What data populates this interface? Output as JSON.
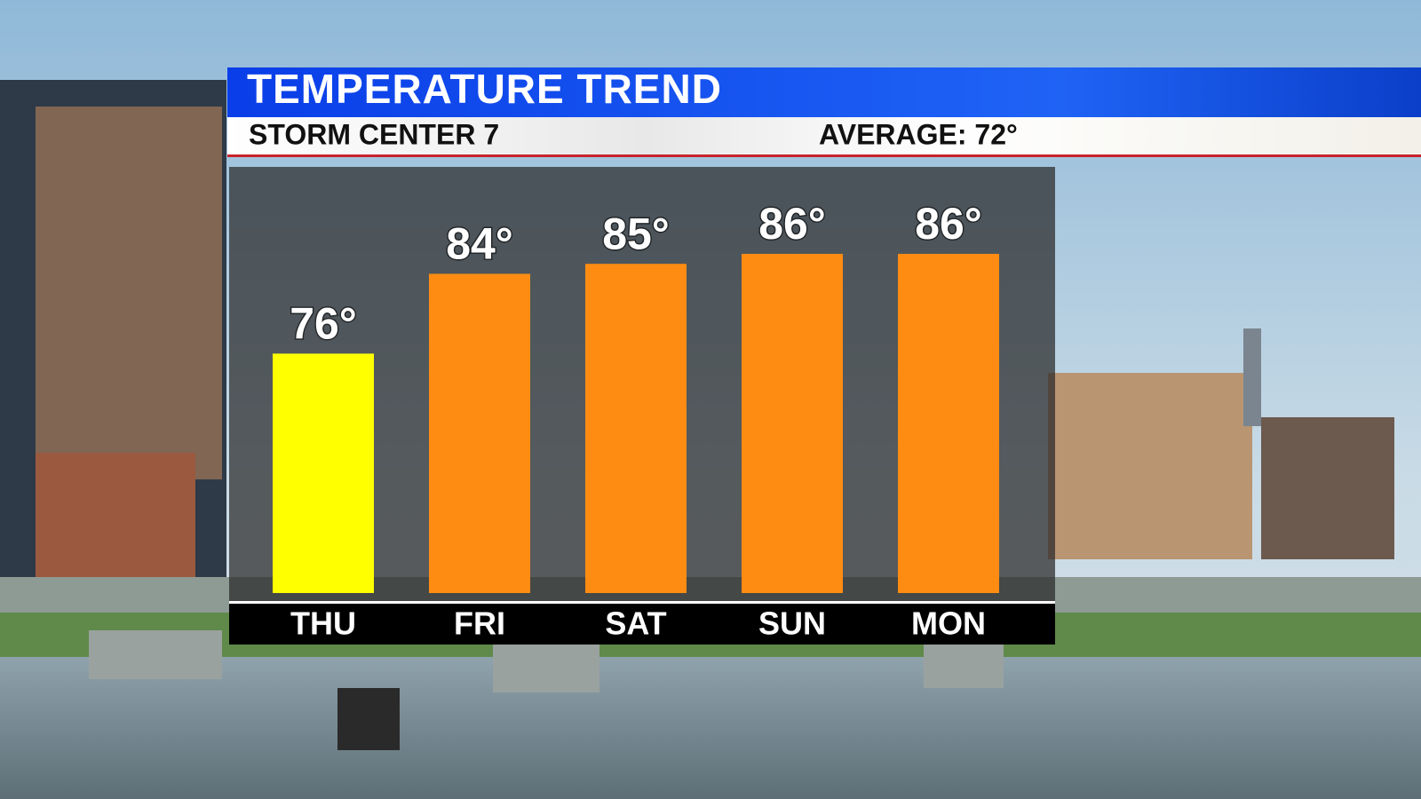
{
  "chart_data": {
    "type": "bar",
    "title": "TEMPERATURE TREND",
    "subtitle": "STORM CENTER 7",
    "annotation": "AVERAGE: 72°",
    "categories": [
      "THU",
      "FRI",
      "SAT",
      "SUN",
      "MON"
    ],
    "values": [
      76,
      84,
      85,
      86,
      86
    ],
    "value_labels": [
      "76°",
      "84°",
      "85°",
      "86°",
      "86°"
    ],
    "colors": [
      "#ffff00",
      "#ff8c12",
      "#ff8c12",
      "#ff8c12",
      "#ff8c12"
    ],
    "ylim": [
      52,
      90
    ]
  }
}
